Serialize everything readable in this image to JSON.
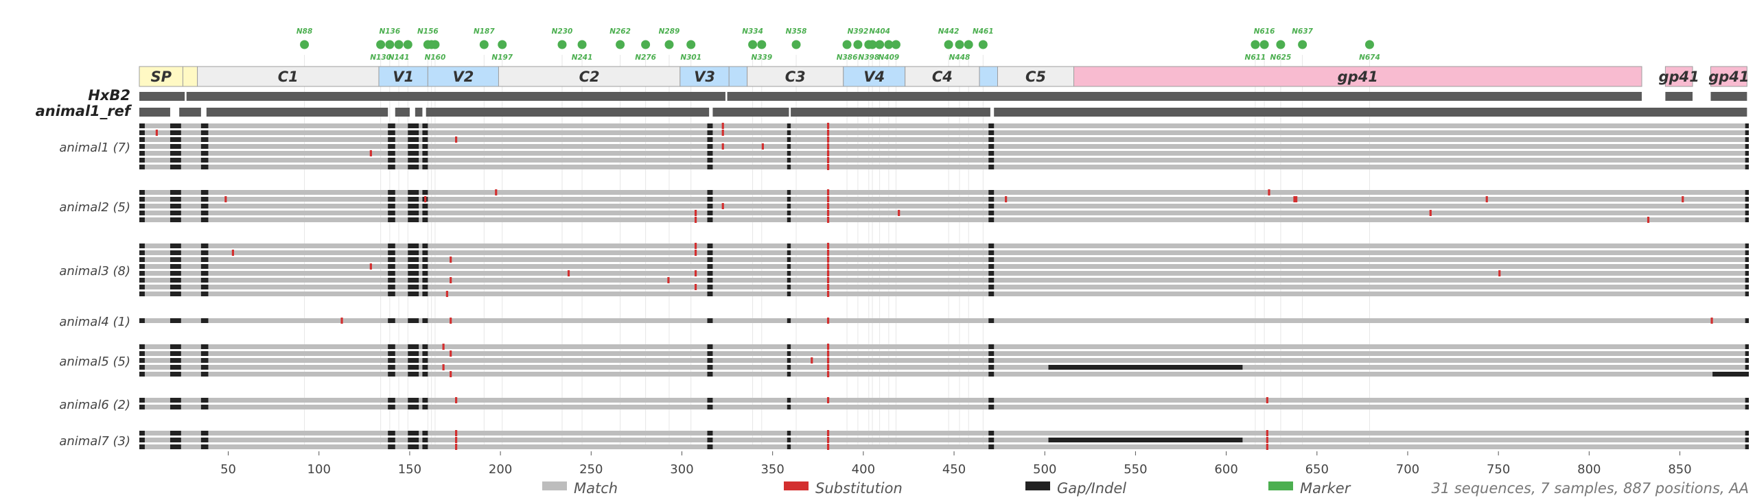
{
  "chart_data": {
    "type": "alignment",
    "x_axis": {
      "range": [
        1,
        887
      ],
      "ticks": [
        50,
        100,
        150,
        200,
        250,
        300,
        350,
        400,
        450,
        500,
        550,
        600,
        650,
        700,
        750,
        800,
        850
      ]
    },
    "regions": [
      {
        "name": "SP",
        "start": 1,
        "end": 24,
        "type": "signal"
      },
      {
        "name": "",
        "start": 25,
        "end": 32,
        "type": "signal"
      },
      {
        "name": "C1",
        "start": 33,
        "end": 132,
        "type": "constant"
      },
      {
        "name": "V1",
        "start": 133,
        "end": 159,
        "type": "variable"
      },
      {
        "name": "V2",
        "start": 160,
        "end": 198,
        "type": "variable"
      },
      {
        "name": "C2",
        "start": 199,
        "end": 298,
        "type": "constant"
      },
      {
        "name": "V3",
        "start": 299,
        "end": 325,
        "type": "variable"
      },
      {
        "name": "",
        "start": 326,
        "end": 335,
        "type": "variable"
      },
      {
        "name": "C3",
        "start": 336,
        "end": 388,
        "type": "constant"
      },
      {
        "name": "V4",
        "start": 389,
        "end": 422,
        "type": "variable"
      },
      {
        "name": "C4",
        "start": 423,
        "end": 463,
        "type": "constant"
      },
      {
        "name": "",
        "start": 464,
        "end": 473,
        "type": "variable"
      },
      {
        "name": "C5",
        "start": 474,
        "end": 515,
        "type": "constant"
      },
      {
        "name": "gp41",
        "start": 516,
        "end": 828,
        "type": "gp41"
      },
      {
        "name": "gp41",
        "start": 842,
        "end": 856,
        "type": "gp41"
      },
      {
        "name": "gp41",
        "start": 867,
        "end": 886,
        "type": "gp41"
      }
    ],
    "markers": [
      {
        "label": "N88",
        "pos": 92,
        "row": "top"
      },
      {
        "label": "N130",
        "pos": 134,
        "row": "bottom"
      },
      {
        "label": "N136",
        "pos": 139,
        "row": "top"
      },
      {
        "label": "N141",
        "pos": 144,
        "row": "bottom"
      },
      {
        "label": "N156",
        "pos": 160,
        "row": "top"
      },
      {
        "label": "N160",
        "pos": 164,
        "row": "bottom"
      },
      {
        "label": "N187",
        "pos": 191,
        "row": "top"
      },
      {
        "label": "N197",
        "pos": 201,
        "row": "bottom"
      },
      {
        "label": "N230",
        "pos": 234,
        "row": "top"
      },
      {
        "label": "N241",
        "pos": 245,
        "row": "bottom"
      },
      {
        "label": "N262",
        "pos": 266,
        "row": "top"
      },
      {
        "label": "N276",
        "pos": 280,
        "row": "bottom"
      },
      {
        "label": "N289",
        "pos": 293,
        "row": "top"
      },
      {
        "label": "N301",
        "pos": 305,
        "row": "bottom"
      },
      {
        "label": "N334",
        "pos": 339,
        "row": "top"
      },
      {
        "label": "N339",
        "pos": 344,
        "row": "bottom"
      },
      {
        "label": "N358",
        "pos": 363,
        "row": "top"
      },
      {
        "label": "N386",
        "pos": 391,
        "row": "bottom"
      },
      {
        "label": "N392",
        "pos": 397,
        "row": "top"
      },
      {
        "label": "N398",
        "pos": 403,
        "row": "bottom"
      },
      {
        "label": "N404",
        "pos": 409,
        "row": "top"
      },
      {
        "label": "N409",
        "pos": 414,
        "row": "bottom"
      },
      {
        "label": "N442",
        "pos": 447,
        "row": "top"
      },
      {
        "label": "N448",
        "pos": 453,
        "row": "bottom"
      },
      {
        "label": "N461",
        "pos": 466,
        "row": "top"
      },
      {
        "label": "N611",
        "pos": 616,
        "row": "bottom"
      },
      {
        "label": "N616",
        "pos": 621,
        "row": "top"
      },
      {
        "label": "N625",
        "pos": 630,
        "row": "bottom"
      },
      {
        "label": "N637",
        "pos": 642,
        "row": "top"
      },
      {
        "label": "N674",
        "pos": 679,
        "row": "bottom"
      }
    ],
    "extra_marker_dots": [
      149,
      162,
      405,
      418,
      458
    ],
    "references": [
      {
        "name": "HxB2",
        "segments": [
          [
            1,
            25
          ],
          [
            27,
            323
          ],
          [
            325,
            828
          ],
          [
            842,
            856
          ],
          [
            867,
            886
          ]
        ]
      },
      {
        "name": "animal1_ref",
        "segments": [
          [
            1,
            17
          ],
          [
            23,
            34
          ],
          [
            38,
            137
          ],
          [
            142,
            149
          ],
          [
            153,
            156
          ],
          [
            159,
            314
          ],
          [
            317,
            358
          ],
          [
            360,
            469
          ],
          [
            472,
            886
          ]
        ]
      }
    ],
    "gap_columns": [
      [
        1,
        3
      ],
      [
        18,
        23
      ],
      [
        35,
        38
      ],
      [
        138,
        141
      ],
      [
        149,
        154
      ],
      [
        157,
        159
      ],
      [
        314,
        316
      ],
      [
        358,
        359
      ],
      [
        469,
        471
      ],
      [
        886,
        887
      ]
    ],
    "samples": [
      {
        "label": "animal1 (7)",
        "n": 7,
        "subs": [
          [
            1,
            10
          ],
          [
            2,
            175
          ],
          [
            3,
            322
          ],
          [
            3,
            344
          ],
          [
            4,
            128
          ],
          [
            0,
            322
          ],
          [
            1,
            322
          ],
          [
            0,
            380
          ],
          [
            1,
            380
          ],
          [
            2,
            380
          ],
          [
            3,
            380
          ],
          [
            4,
            380
          ],
          [
            5,
            380
          ],
          [
            6,
            380
          ]
        ]
      },
      {
        "label": "animal2 (5)",
        "n": 5,
        "subs": [
          [
            1,
            48
          ],
          [
            0,
            197
          ],
          [
            1,
            158
          ],
          [
            2,
            322
          ],
          [
            3,
            307
          ],
          [
            4,
            307
          ],
          [
            3,
            419
          ],
          [
            0,
            623
          ],
          [
            1,
            637
          ],
          [
            1,
            638
          ],
          [
            1,
            478
          ],
          [
            3,
            712
          ],
          [
            1,
            743
          ],
          [
            4,
            832
          ],
          [
            1,
            851
          ],
          [
            0,
            380
          ],
          [
            1,
            380
          ],
          [
            2,
            380
          ],
          [
            3,
            380
          ],
          [
            4,
            380
          ]
        ]
      },
      {
        "label": "animal3 (8)",
        "n": 8,
        "subs": [
          [
            0,
            307
          ],
          [
            1,
            307
          ],
          [
            1,
            52
          ],
          [
            2,
            172
          ],
          [
            3,
            128
          ],
          [
            4,
            237
          ],
          [
            4,
            307
          ],
          [
            5,
            172
          ],
          [
            5,
            292
          ],
          [
            6,
            307
          ],
          [
            7,
            170
          ],
          [
            4,
            750
          ],
          [
            0,
            380
          ],
          [
            1,
            380
          ],
          [
            2,
            380
          ],
          [
            3,
            380
          ],
          [
            4,
            380
          ],
          [
            5,
            380
          ],
          [
            6,
            380
          ],
          [
            7,
            380
          ]
        ]
      },
      {
        "label": "animal4 (1)",
        "n": 1,
        "subs": [
          [
            0,
            112
          ],
          [
            0,
            172
          ],
          [
            0,
            380
          ],
          [
            0,
            867
          ]
        ]
      },
      {
        "label": "animal5 (5)",
        "n": 5,
        "subs": [
          [
            0,
            168
          ],
          [
            1,
            172
          ],
          [
            2,
            371
          ],
          [
            3,
            168
          ],
          [
            4,
            172
          ],
          [
            0,
            380
          ],
          [
            1,
            380
          ],
          [
            2,
            380
          ],
          [
            3,
            380
          ],
          [
            4,
            380
          ]
        ],
        "gaps": [
          [
            3,
            502,
            608
          ],
          [
            4,
            868,
            887
          ]
        ]
      },
      {
        "label": "animal6 (2)",
        "n": 2,
        "subs": [
          [
            0,
            175
          ],
          [
            0,
            380
          ],
          [
            0,
            622
          ]
        ]
      },
      {
        "label": "animal7 (3)",
        "n": 3,
        "subs": [
          [
            0,
            175
          ],
          [
            1,
            175
          ],
          [
            2,
            175
          ],
          [
            0,
            380
          ],
          [
            1,
            380
          ],
          [
            2,
            380
          ],
          [
            0,
            622
          ],
          [
            1,
            622
          ],
          [
            2,
            622
          ]
        ],
        "gaps": [
          [
            1,
            502,
            608
          ]
        ]
      }
    ],
    "legend": [
      {
        "label": "Match",
        "color": "#bdbdbd"
      },
      {
        "label": "Substitution",
        "color": "#d32f2f"
      },
      {
        "label": "Gap/Indel",
        "color": "#222222"
      },
      {
        "label": "Marker",
        "color": "#4caf50"
      }
    ],
    "summary": "31 sequences, 7 samples, 887 positions, AA",
    "colors": {
      "match": "#bdbdbd",
      "substitution": "#d32f2f",
      "gap": "#222222",
      "marker": "#4caf50",
      "reference": "#5a5a5a",
      "signal": "#fff9c4",
      "constant": "#eeeeee",
      "variable": "#bbdefb",
      "gp41": "#f8bbd0"
    }
  }
}
